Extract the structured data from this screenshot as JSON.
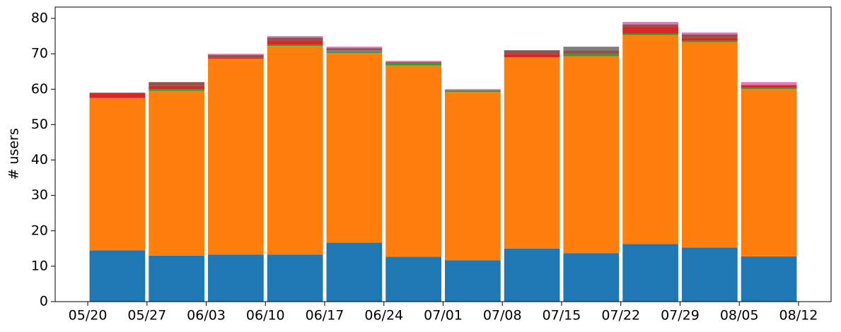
{
  "chart_data": {
    "type": "histogram",
    "y_label": "# users",
    "bins": [
      "05/20",
      "05/27",
      "06/03",
      "06/10",
      "06/17",
      "06/24",
      "07/01",
      "07/08",
      "07/15",
      "07/22",
      "07/29",
      "08/05",
      "08/12"
    ],
    "series": [
      {
        "color": "#1f77b4",
        "values": [
          14.5,
          13,
          13.3,
          13.3,
          16.7,
          12.7,
          11.7,
          15,
          13.7,
          16.3,
          15.3,
          12.8
        ]
      },
      {
        "color": "#ff7f0e",
        "values": [
          43,
          46.5,
          55.3,
          58.9,
          53.5,
          54,
          47.5,
          54,
          55.6,
          59,
          58,
          47.2
        ]
      },
      {
        "color": "#2ca02c",
        "values": [
          0,
          0.5,
          0,
          0.4,
          0.4,
          0.6,
          0.4,
          0,
          0.6,
          0.4,
          0.4,
          0.4
        ]
      },
      {
        "color": "#d62728",
        "values": [
          1.5,
          1,
          0.4,
          1.2,
          0,
          0,
          0,
          1,
          0,
          1.9,
          0.8,
          0.8
        ]
      },
      {
        "color": "#9467bd",
        "values": [
          0,
          0,
          0,
          0,
          0.4,
          0,
          0,
          0,
          0,
          0,
          0,
          0
        ]
      },
      {
        "color": "#8c564b",
        "values": [
          0,
          1,
          0.7,
          0.8,
          0.6,
          0.4,
          0.2,
          1,
          1.1,
          0.7,
          1,
          0
        ]
      },
      {
        "color": "#e377c2",
        "values": [
          0,
          0,
          0.3,
          0.4,
          0.4,
          0.3,
          0.2,
          0,
          0,
          0.7,
          0.5,
          0.8
        ]
      },
      {
        "color": "#7f7f7f",
        "values": [
          0,
          0,
          0,
          0,
          0,
          0,
          0,
          0,
          1,
          0,
          0,
          0
        ]
      }
    ],
    "ylim": [
      0,
      83.2
    ],
    "yticks": [
      0,
      10,
      20,
      30,
      40,
      50,
      60,
      70,
      80
    ]
  }
}
